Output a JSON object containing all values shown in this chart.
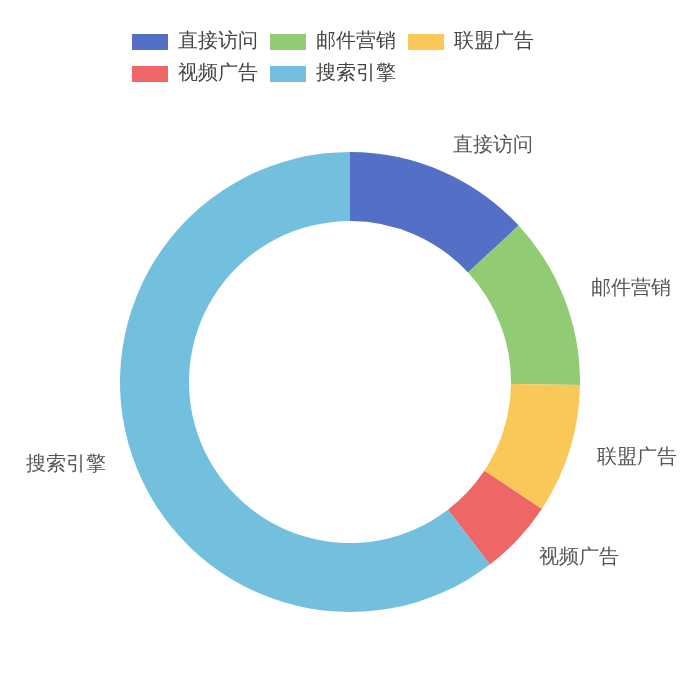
{
  "chart_data": {
    "type": "donut",
    "categories": [
      "直接访问",
      "邮件营销",
      "联盟广告",
      "视频广告",
      "搜索引擎"
    ],
    "values": [
      13.1,
      12.1,
      9.1,
      5.3,
      60.4
    ],
    "colors": [
      "#5470c6",
      "#91cc75",
      "#fac858",
      "#ee6666",
      "#73c0de"
    ],
    "legend": "top left"
  }
}
